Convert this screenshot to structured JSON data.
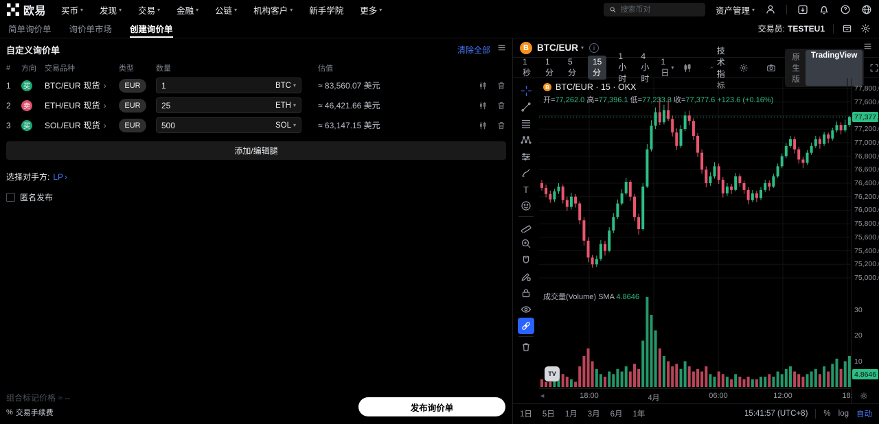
{
  "topnav": {
    "logo_text": "欧易",
    "items": [
      {
        "label": "买币"
      },
      {
        "label": "发现"
      },
      {
        "label": "交易"
      },
      {
        "label": "金融"
      },
      {
        "label": "公链"
      },
      {
        "label": "机构客户"
      },
      {
        "label": "新手学院"
      },
      {
        "label": "更多"
      }
    ],
    "search_placeholder": "搜索币对",
    "assets_label": "资产管理"
  },
  "subnav": {
    "tabs": [
      {
        "label": "简单询价单"
      },
      {
        "label": "询价单市场"
      },
      {
        "label": "创建询价单"
      }
    ],
    "trader_label": "交易员:",
    "trader_value": "TESTEU1"
  },
  "panel": {
    "title": "自定义询价单",
    "clear_all": "清除全部",
    "headers": {
      "index": "#",
      "side": "方向",
      "pair": "交易品种",
      "type": "类型",
      "amount": "数量",
      "value": "估值"
    },
    "rows": [
      {
        "index": "1",
        "side": "买",
        "pair": "BTC/EUR",
        "market": "现货",
        "currency": "EUR",
        "amount": "1",
        "unit": "BTC",
        "value": "≈ 83,560.07 美元"
      },
      {
        "index": "2",
        "side": "卖",
        "pair": "ETH/EUR",
        "market": "现货",
        "currency": "EUR",
        "amount": "25",
        "unit": "ETH",
        "value": "≈ 46,421.66 美元"
      },
      {
        "index": "3",
        "side": "买",
        "pair": "SOL/EUR",
        "market": "现货",
        "currency": "EUR",
        "amount": "500",
        "unit": "SOL",
        "value": "≈ 63,147.15 美元"
      }
    ],
    "add_button": "添加/编辑腿",
    "counterparty_label": "选择对手方:",
    "counterparty_value": "LP",
    "anonymous_label": "匿名发布",
    "mark_price_label": "组合标记价格",
    "mark_price_value": "≈ --",
    "fee_label": "交易手续费",
    "fee_icon": "%",
    "submit_button": "发布询价单"
  },
  "chart": {
    "symbol": "BTC/EUR",
    "intervals": [
      {
        "label": "1秒"
      },
      {
        "label": "1分"
      },
      {
        "label": "5分"
      },
      {
        "label": "15分"
      },
      {
        "label": "1小时"
      },
      {
        "label": "4小时"
      },
      {
        "label": "1日"
      }
    ],
    "indicators_label": "技术指标",
    "native_label": "原生版",
    "tv_label": "TradingView",
    "legend_title": "BTC/EUR · 15 · OKX",
    "ohlc": {
      "o_label": "开=",
      "o": "77,262.0",
      "h_label": "高=",
      "h": "77,396.1",
      "l_label": "低=",
      "l": "77,233.3",
      "c_label": "收=",
      "c": "77,377.6",
      "change": "+123.6 (+0.16%)"
    },
    "volume_label": "成交量(Volume)",
    "sma_label": "SMA",
    "sma_value": "4.8646",
    "price_badge": "77,377.6",
    "volume_badge": "4.8646",
    "tv_logo": "TV",
    "range_buttons": [
      {
        "label": "1日"
      },
      {
        "label": "5日"
      },
      {
        "label": "1月"
      },
      {
        "label": "3月"
      },
      {
        "label": "6月"
      },
      {
        "label": "1年"
      }
    ],
    "clock": "15:41:57 (UTC+8)",
    "percent_label": "%",
    "log_label": "log",
    "auto_label": "自动",
    "colors": {
      "up": "#2ebd85",
      "down": "#e8566e",
      "accent": "#4577f6"
    }
  },
  "chart_data": {
    "type": "candlestick",
    "title": "BTC/EUR · 15 · OKX",
    "interval": "15分",
    "exchange": "OKX",
    "current_price": 77377.6,
    "last_candle": {
      "open": 77262.0,
      "high": 77396.1,
      "low": 77233.3,
      "close": 77377.6,
      "change": 123.6,
      "change_pct": 0.16
    },
    "volume_sma": 4.8646,
    "price_axis": [
      77800,
      77600,
      77400,
      77200,
      77000,
      76800,
      76600,
      76400,
      76200,
      76000,
      75800,
      75600,
      75400,
      75200,
      75000
    ],
    "volume_axis": [
      30,
      20,
      10
    ],
    "time_labels": [
      "18:00",
      "4月",
      "06:00",
      "12:00",
      "18:"
    ],
    "candles": [
      [
        76400,
        76450,
        76290,
        76330,
        3
      ],
      [
        76330,
        76380,
        76190,
        76240,
        2
      ],
      [
        76240,
        76290,
        76110,
        76160,
        2
      ],
      [
        76160,
        76320,
        76120,
        76280,
        4
      ],
      [
        76280,
        76400,
        76240,
        76350,
        3
      ],
      [
        76350,
        76380,
        76100,
        76150,
        5
      ],
      [
        76150,
        76200,
        75990,
        76050,
        4
      ],
      [
        76050,
        76260,
        76010,
        76200,
        3
      ],
      [
        76200,
        76240,
        76040,
        76100,
        2
      ],
      [
        76100,
        76130,
        75790,
        75850,
        8
      ],
      [
        75850,
        75900,
        75480,
        75550,
        12
      ],
      [
        75550,
        75600,
        75230,
        75300,
        15
      ],
      [
        75300,
        75340,
        75150,
        75200,
        10
      ],
      [
        75200,
        75330,
        75160,
        75280,
        7
      ],
      [
        75280,
        75560,
        75250,
        75500,
        5
      ],
      [
        75500,
        75550,
        75330,
        75400,
        4
      ],
      [
        75400,
        75750,
        75380,
        75700,
        6
      ],
      [
        75700,
        75960,
        75660,
        75900,
        5
      ],
      [
        75900,
        76160,
        75870,
        76100,
        7
      ],
      [
        76100,
        76310,
        76070,
        76250,
        6
      ],
      [
        76250,
        76480,
        76220,
        76420,
        8
      ],
      [
        76420,
        76450,
        76140,
        76200,
        6
      ],
      [
        76200,
        76240,
        75840,
        75900,
        9
      ],
      [
        75900,
        75950,
        75640,
        75720,
        7
      ],
      [
        75720,
        76400,
        75700,
        76350,
        18
      ],
      [
        76350,
        76980,
        76330,
        76900,
        35
      ],
      [
        76900,
        77330,
        76870,
        77250,
        28
      ],
      [
        77250,
        77520,
        77200,
        77450,
        22
      ],
      [
        77450,
        77660,
        77260,
        77300,
        15
      ],
      [
        77300,
        77560,
        77270,
        77480,
        12
      ],
      [
        77480,
        77650,
        77320,
        77350,
        10
      ],
      [
        77350,
        77400,
        77090,
        77150,
        8
      ],
      [
        77150,
        77210,
        76890,
        76950,
        9
      ],
      [
        76950,
        77260,
        76920,
        77200,
        7
      ],
      [
        77200,
        77460,
        77170,
        77400,
        10
      ],
      [
        77400,
        77470,
        77260,
        77320,
        8
      ],
      [
        77320,
        77360,
        77040,
        77100,
        6
      ],
      [
        77100,
        77140,
        76790,
        76850,
        7
      ],
      [
        76850,
        76900,
        76540,
        76600,
        6
      ],
      [
        76600,
        76650,
        76340,
        76400,
        8
      ],
      [
        76400,
        76560,
        76360,
        76500,
        5
      ],
      [
        76500,
        76710,
        76470,
        76650,
        4
      ],
      [
        76650,
        76690,
        76390,
        76450,
        6
      ],
      [
        76450,
        76490,
        76190,
        76250,
        5
      ],
      [
        76250,
        76400,
        76210,
        76350,
        4
      ],
      [
        76350,
        76390,
        76240,
        76300,
        3
      ],
      [
        76300,
        76550,
        76280,
        76500,
        5
      ],
      [
        76500,
        76540,
        76350,
        76400,
        4
      ],
      [
        76400,
        76440,
        76240,
        76300,
        3
      ],
      [
        76300,
        76340,
        76090,
        76150,
        4
      ],
      [
        76150,
        76300,
        76120,
        76250,
        3
      ],
      [
        76250,
        76290,
        76120,
        76180,
        3
      ],
      [
        76180,
        76340,
        76150,
        76300,
        4
      ],
      [
        76300,
        76450,
        76270,
        76400,
        4
      ],
      [
        76400,
        76440,
        76290,
        76350,
        5
      ],
      [
        76350,
        76540,
        76330,
        76500,
        4
      ],
      [
        76500,
        76690,
        76480,
        76650,
        6
      ],
      [
        76650,
        76840,
        76620,
        76800,
        5
      ],
      [
        76800,
        76990,
        76770,
        76950,
        7
      ],
      [
        76950,
        77100,
        76920,
        77050,
        8
      ],
      [
        77050,
        77090,
        76840,
        76900,
        6
      ],
      [
        76900,
        76940,
        76690,
        76750,
        5
      ],
      [
        76750,
        76790,
        76620,
        76700,
        4
      ],
      [
        76700,
        76890,
        76670,
        76850,
        5
      ],
      [
        76850,
        77000,
        76820,
        76950,
        6
      ],
      [
        76950,
        77100,
        76920,
        77050,
        7
      ],
      [
        77050,
        77090,
        76910,
        76980,
        5
      ],
      [
        76980,
        77160,
        76950,
        77120,
        8
      ],
      [
        77120,
        77150,
        76990,
        77060,
        6
      ],
      [
        77060,
        77220,
        77030,
        77180,
        9
      ],
      [
        77180,
        77310,
        77150,
        77260,
        11
      ],
      [
        77260,
        77300,
        77120,
        77180,
        7
      ],
      [
        77180,
        77340,
        77150,
        77262,
        10
      ],
      [
        77262,
        77396.1,
        77233.3,
        77377.6,
        12
      ]
    ]
  }
}
